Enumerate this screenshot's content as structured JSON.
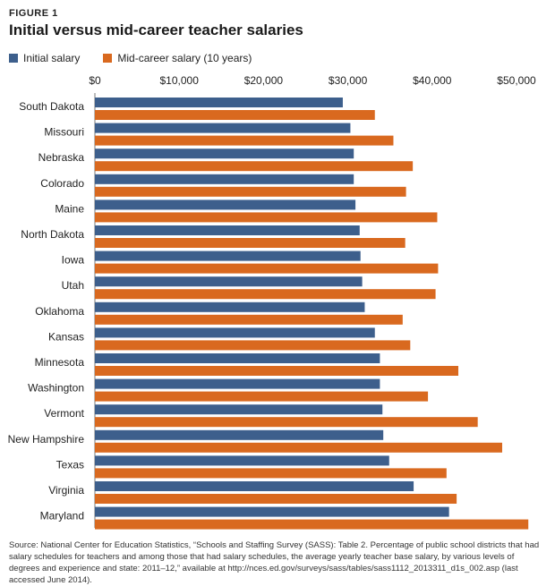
{
  "figure_label": "FIGURE 1",
  "title": "Initial versus mid-career teacher salaries",
  "legend": [
    {
      "label": "Initial salary",
      "color": "#3d5f8c"
    },
    {
      "label": "Mid-career salary (10 years)",
      "color": "#d9691f"
    }
  ],
  "source": "Source: National Center for Education Statistics, “Schools and Staffing Survey (SASS): Table 2. Percentage of public school districts that had salary schedules for teachers and among those that had salary schedules, the average yearly teacher base salary, by various levels of degrees and experience and state: 2011–12,” available at http://nces.ed.gov/surveys/sass/tables/sass1112_2013311_d1s_002.asp (last accessed June 2014).",
  "chart_data": {
    "type": "bar",
    "orientation": "horizontal",
    "title": "Initial versus mid-career teacher salaries",
    "xlim": [
      0,
      52000
    ],
    "x_ticks": [
      0,
      10000,
      20000,
      30000,
      40000,
      50000
    ],
    "x_tick_labels": [
      "$0",
      "$10,000",
      "$20,000",
      "$30,000",
      "$40,000",
      "$50,000"
    ],
    "x_axis_position": "top",
    "legend_position": "top-left",
    "grid": false,
    "categories": [
      "South Dakota",
      "Missouri",
      "Nebraska",
      "Colorado",
      "Maine",
      "North Dakota",
      "Iowa",
      "Utah",
      "Oklahoma",
      "Kansas",
      "Minnesota",
      "Washington",
      "Vermont",
      "New Hampshire",
      "Texas",
      "Virginia",
      "Maryland"
    ],
    "series": [
      {
        "name": "Initial salary",
        "color": "#3d5f8c",
        "values": [
          29400,
          30300,
          30700,
          30700,
          30900,
          31400,
          31500,
          31700,
          32000,
          33200,
          33800,
          33800,
          34100,
          34200,
          34900,
          37800,
          42000
        ]
      },
      {
        "name": "Mid-career salary (10 years)",
        "color": "#d9691f",
        "values": [
          33200,
          35400,
          37700,
          36900,
          40600,
          36800,
          40700,
          40400,
          36500,
          37400,
          43100,
          39500,
          45400,
          48300,
          41700,
          42900,
          51400
        ]
      }
    ]
  }
}
